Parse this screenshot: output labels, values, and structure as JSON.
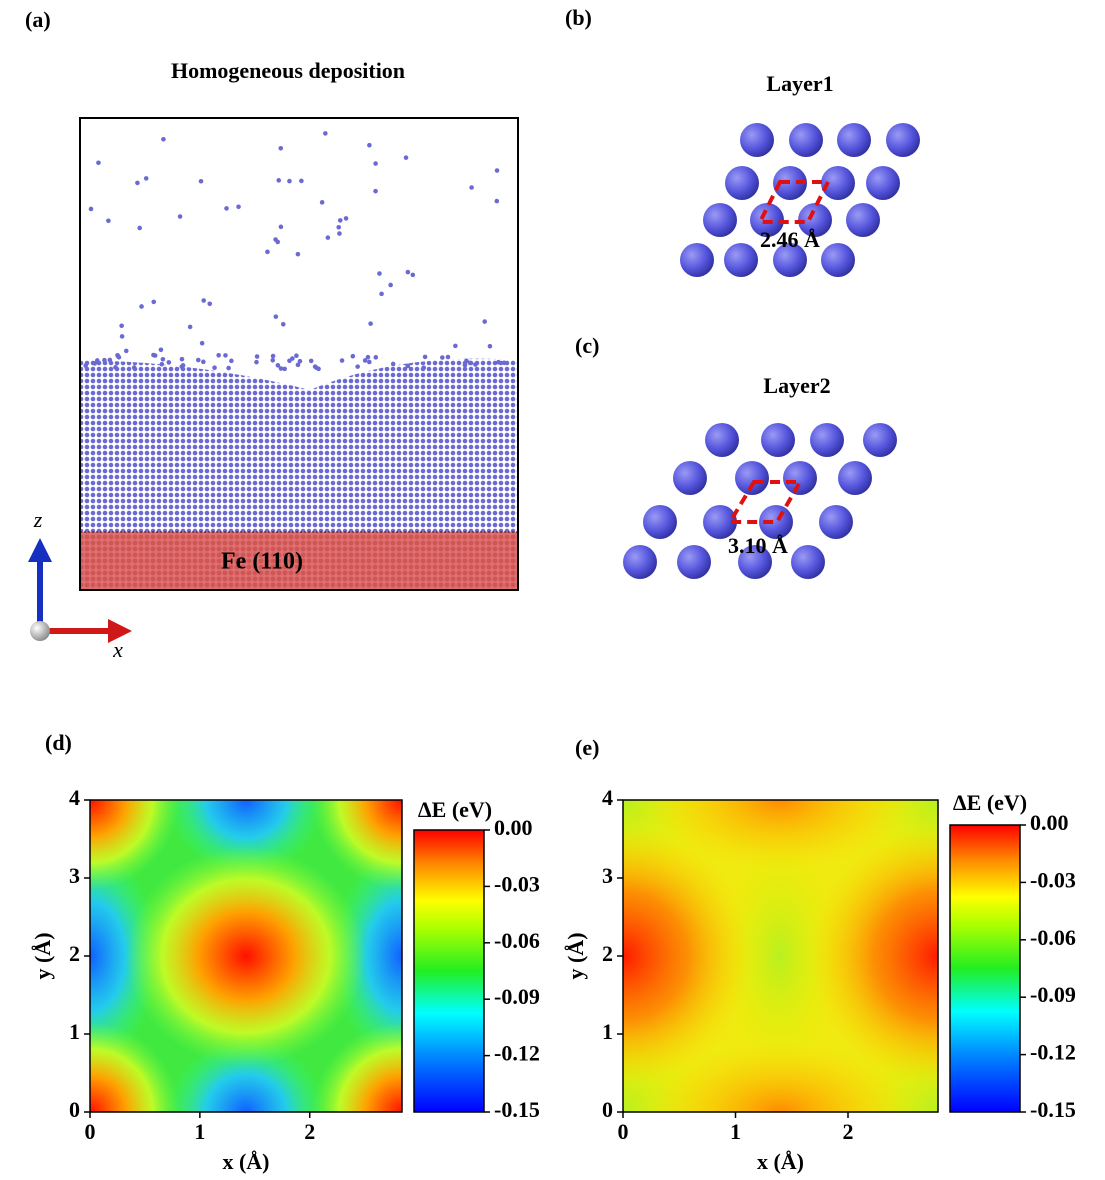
{
  "panels": {
    "a": {
      "label": "(a)",
      "title": "Homogeneous deposition",
      "substrate": "Fe (110)",
      "axis_z": "z",
      "axis_x": "x"
    },
    "b": {
      "label": "(b)",
      "title": "Layer1",
      "spacing": "2.46 Å"
    },
    "c": {
      "label": "(c)",
      "title": "Layer2",
      "spacing": "3.10 Å"
    }
  },
  "chart_data": [
    {
      "type": "heatmap",
      "label": "(d)",
      "xlabel": "x (Å)",
      "ylabel": "y (Å)",
      "xlim": [
        0,
        2.84
      ],
      "ylim": [
        0,
        4
      ],
      "xticks": [
        0,
        1,
        2
      ],
      "yticks": [
        0,
        1,
        2,
        3,
        4
      ],
      "colorbar_title": "ΔE (eV)",
      "clim": [
        -0.15,
        0
      ],
      "cticks": [
        {
          "value": 0,
          "label": "0.00"
        },
        -0.03,
        -0.06,
        -0.09,
        -0.12,
        -0.15
      ]
    },
    {
      "type": "heatmap",
      "label": "(e)",
      "xlabel": "x (Å)",
      "ylabel": "y (Å)",
      "xlim": [
        0,
        2.8
      ],
      "ylim": [
        0,
        4
      ],
      "xticks": [
        0,
        1,
        2
      ],
      "yticks": [
        0,
        1,
        2,
        3,
        4
      ],
      "colorbar_title": "ΔE (eV)",
      "clim": [
        -0.15,
        0
      ],
      "cticks": [
        {
          "value": 0,
          "label": "0.00"
        },
        -0.03,
        -0.06,
        -0.09,
        -0.12,
        -0.15
      ]
    }
  ]
}
